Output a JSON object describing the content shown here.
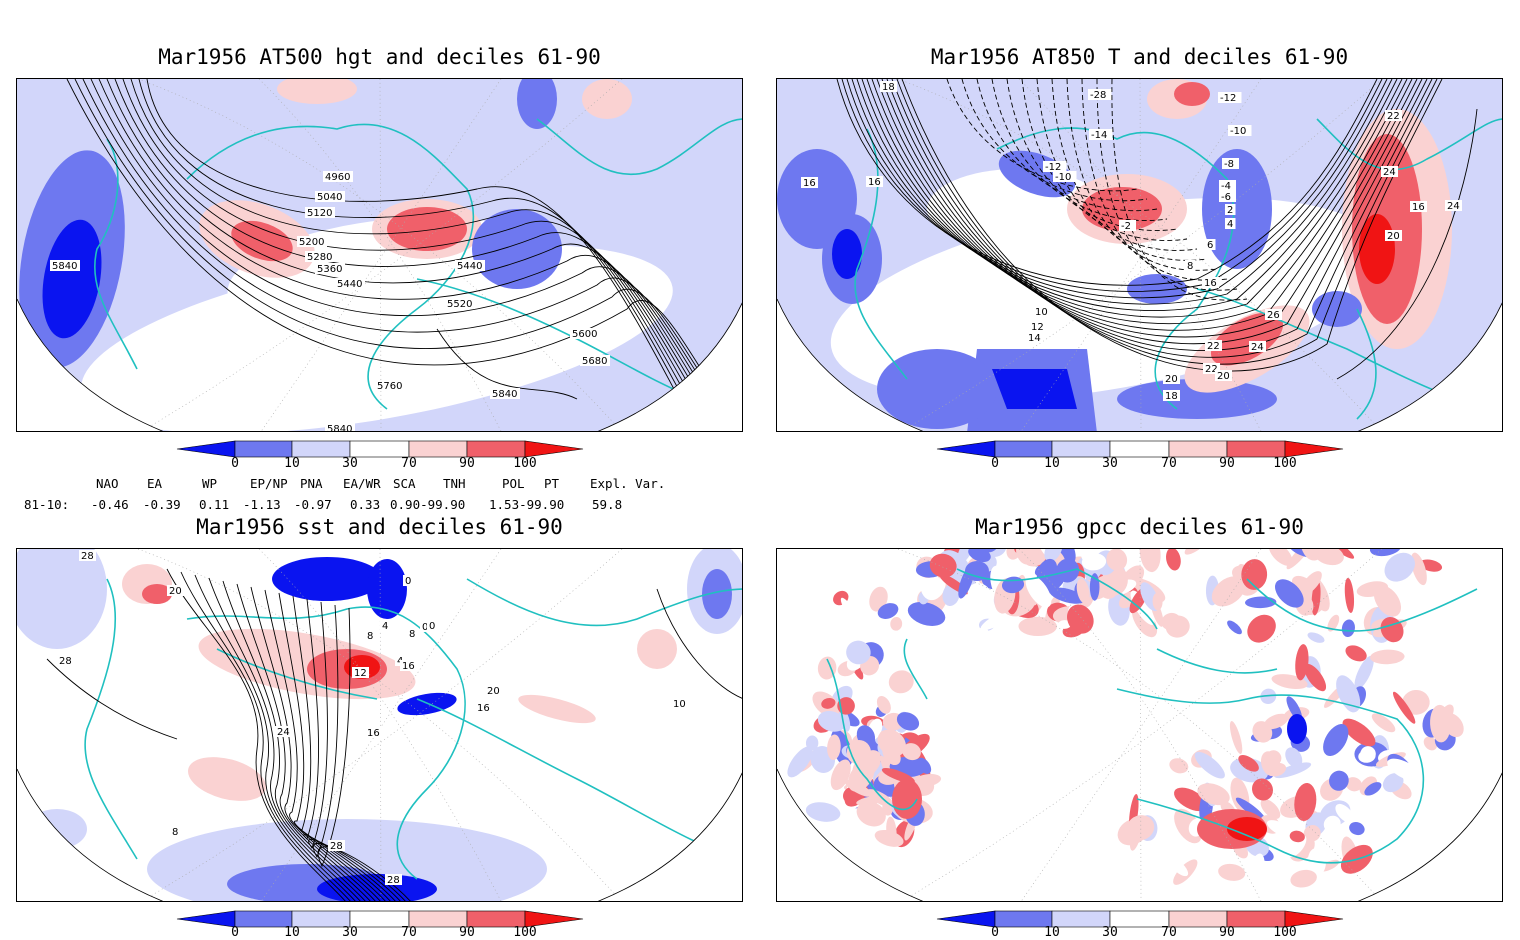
{
  "panels": [
    {
      "id": "p1",
      "title": "Mar1956 AT500 hgt and deciles 61-90",
      "contour_labels": [
        "4960",
        "5040",
        "5120",
        "5200",
        "5280",
        "5360",
        "5440",
        "5520",
        "5600",
        "5680",
        "5760",
        "5840",
        "5840",
        "5440",
        "5840"
      ]
    },
    {
      "id": "p2",
      "title": "Mar1956 AT850 T and deciles 61-90",
      "contour_labels": [
        "18",
        "16",
        "16",
        "-28",
        "-14",
        "-12",
        "-12",
        "-10",
        "-10",
        "-8",
        "-6",
        "-4",
        "-2",
        "2",
        "4",
        "6",
        "8",
        "10",
        "12",
        "14",
        "16",
        "16",
        "20",
        "22",
        "24",
        "26",
        "20",
        "22",
        "24",
        "18",
        "20",
        "22",
        "24",
        "16"
      ]
    },
    {
      "id": "p3",
      "title": "Mar1956 sst and deciles 61-90",
      "contour_labels": [
        "28",
        "20",
        "28",
        "0",
        "4",
        "8",
        "12",
        "0",
        "0",
        "4",
        "8",
        "16",
        "16",
        "16",
        "20",
        "24",
        "28",
        "28",
        "10",
        "8"
      ]
    },
    {
      "id": "p4",
      "title": "Mar1956 gpcc deciles 61-90",
      "contour_labels": []
    }
  ],
  "colorbar": {
    "ticks": [
      "0",
      "10",
      "30",
      "70",
      "90",
      "100"
    ],
    "colors": {
      "deep_blue": "#0a14f0",
      "mid_blue": "#6e78f0",
      "light_blue": "#d2d6fa",
      "white": "#ffffff",
      "light_red": "#fad2d2",
      "mid_red": "#f0606a",
      "deep_red": "#f01414"
    }
  },
  "indices": {
    "headers": [
      "NAO",
      "EA",
      "WP",
      "EP/NP",
      "PNA",
      "EA/WR",
      "SCA",
      "TNH",
      "POL",
      "PT",
      "Expl. Var."
    ],
    "row_label": "81-10:",
    "values": [
      "-0.46",
      "-0.39",
      "0.11",
      "-1.13",
      "-0.97",
      "0.33",
      "0.90-99.90",
      "1.53-99.90",
      "59.8"
    ]
  },
  "colors": {
    "coast": "#20c0c0",
    "contour": "#000000"
  }
}
